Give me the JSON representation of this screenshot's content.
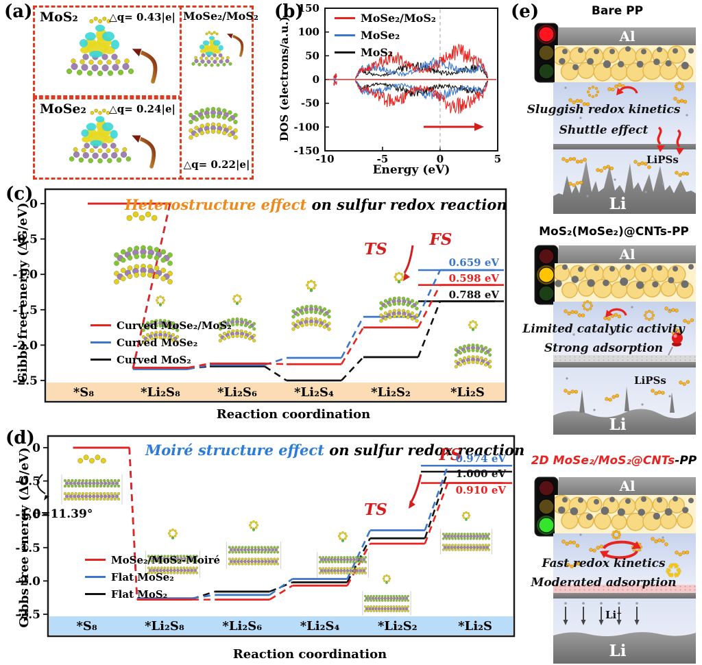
{
  "panels": {
    "a": {
      "label": "(a)",
      "boxes": [
        {
          "formula": "MoS₂",
          "dq": "△q= 0.43|e|"
        },
        {
          "formula": "MoSe₂",
          "dq": "△q= 0.24|e|"
        },
        {
          "formula": "MoSe₂/MoS₂",
          "dq": "△q= 0.22|e|"
        }
      ]
    },
    "b": {
      "label": "(b)"
    },
    "c": {
      "label": "(c)"
    },
    "d": {
      "label": "(d)"
    },
    "e": {
      "label": "(e)",
      "cells": [
        {
          "title": "Bare PP",
          "traffic_light": "red",
          "electrode": "Al",
          "anode": "Li",
          "lines": [
            "Sluggish redox kinetics",
            "Shuttle effect"
          ],
          "species_label": "LiPSs"
        },
        {
          "title": "MoS₂(MoSe₂)@CNTs-PP",
          "traffic_light": "yellow",
          "electrode": "Al",
          "anode": "Li",
          "lines": [
            "Limited catalytic activity",
            "Strong adsorption"
          ],
          "species_label": "LiPSs"
        },
        {
          "title_highlight": "2D MoSe₂/MoS₂@CNTs",
          "title_rest": "-PP",
          "title_highlight_color": "#e8231f",
          "traffic_light": "green",
          "electrode": "Al",
          "anode": "Li",
          "lines": [
            "Fast redox kinetics",
            "Moderated adsorption"
          ],
          "ion_label": "Li⁺"
        }
      ]
    }
  },
  "chart_data": [
    {
      "id": "dos",
      "type": "line",
      "panel": "b",
      "ylabel": "DOS (electrons/a.u.)",
      "xlabel": "Energy (eV)",
      "xlim": [
        -10,
        5
      ],
      "ylim": [
        -150,
        150
      ],
      "xticks": [
        "-10",
        "-5",
        "0",
        "5"
      ],
      "yticks": [
        "150",
        "100",
        "50",
        "0",
        "-50",
        "-100",
        "-150"
      ],
      "fermi_level_x": 0,
      "band_range_ev": [
        -7.4,
        4.2
      ],
      "core_state_x": -9.1,
      "legend_position": "top-left",
      "series": [
        {
          "name": "MoSe₂/MoS₂",
          "color": "#e8231f",
          "max_dos": 82
        },
        {
          "name": "MoSe₂",
          "color": "#3b76c9",
          "max_dos": 48
        },
        {
          "name": "MoS₂",
          "color": "#111111",
          "max_dos": 38
        }
      ]
    },
    {
      "id": "hetero",
      "type": "step-line",
      "panel": "c",
      "title": {
        "highlight": "Heterostructure effect",
        "rest": " on sulfur redox reaction",
        "highlight_color": "#ee8a1c"
      },
      "ylabel": "Gibbs free energy (ΔG/eV)",
      "xlabel": "Reaction coordination",
      "ylim": [
        -2.7,
        0.15
      ],
      "yticks": [
        "0",
        "-0.5",
        "-1.0",
        "-1.5",
        "-2.0",
        "-2.5"
      ],
      "categories": [
        "*S₈",
        "*Li₂S₈",
        "*Li₂S₆",
        "*Li₂S₄",
        "*Li₂S₂",
        "*Li₂S"
      ],
      "ts_label": "TS",
      "fs_label": "FS",
      "band_color": "#fbdcb4",
      "series": [
        {
          "name": "Curved MoSe₂/MoS₂",
          "color": "#e8231f",
          "values": [
            0,
            -2.32,
            -2.26,
            -2.27,
            -1.75,
            -1.15
          ],
          "barrier": "0.598 eV"
        },
        {
          "name": "Curved MoSe₂",
          "color": "#3b76c9",
          "values": [
            0,
            -2.34,
            -2.28,
            -2.18,
            -1.6,
            -0.94
          ],
          "barrier": "0.659 eV"
        },
        {
          "name": "Curved MoS₂",
          "color": "#111111",
          "values": [
            0,
            -2.33,
            -2.3,
            -2.5,
            -2.17,
            -1.38
          ],
          "barrier": "0.788 eV"
        }
      ]
    },
    {
      "id": "moire",
      "type": "step-line",
      "panel": "d",
      "title": {
        "highlight": "Moiré structure effect",
        "rest": " on sulfur redox reaction",
        "highlight_color": "#2b7cd8"
      },
      "twist_angle_label": "θ=11.39°",
      "ylabel": "Gibbs free energy (ΔG/eV)",
      "xlabel": "Reaction coordination",
      "ylim": [
        -2.7,
        0.15
      ],
      "yticks": [
        "0",
        "-0.5",
        "-1.0",
        "-1.5",
        "-2.0",
        "-2.5"
      ],
      "categories": [
        "*S₈",
        "*Li₂S₈",
        "*Li₂S₆",
        "*Li₂S₄",
        "*Li₂S₂",
        "*Li₂S"
      ],
      "ts_label": "TS",
      "fs_label": "FS",
      "band_color": "#b9dcf8",
      "series": [
        {
          "name": "MoSe₂/MoS₂-Moiré",
          "color": "#e8231f",
          "values": [
            0,
            -2.28,
            -2.28,
            -2.07,
            -1.44,
            -0.53
          ],
          "barrier": "0.910 eV"
        },
        {
          "name": "Flat MoSe₂",
          "color": "#3b76c9",
          "values": [
            0,
            -2.26,
            -2.21,
            -1.97,
            -1.24,
            -0.27
          ],
          "barrier": "0.974 eV"
        },
        {
          "name": "Flat MoS₂",
          "color": "#111111",
          "values": [
            0,
            -2.27,
            -2.16,
            -2.02,
            -1.36,
            -0.36
          ],
          "barrier": "1.000 eV"
        }
      ]
    }
  ]
}
